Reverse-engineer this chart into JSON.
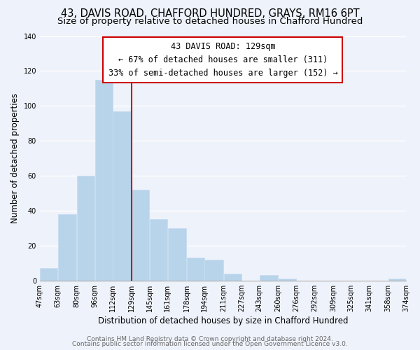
{
  "title": "43, DAVIS ROAD, CHAFFORD HUNDRED, GRAYS, RM16 6PT",
  "subtitle": "Size of property relative to detached houses in Chafford Hundred",
  "xlabel": "Distribution of detached houses by size in Chafford Hundred",
  "ylabel": "Number of detached properties",
  "bar_edges": [
    47,
    63,
    80,
    96,
    112,
    129,
    145,
    161,
    178,
    194,
    211,
    227,
    243,
    260,
    276,
    292,
    309,
    325,
    341,
    358,
    374
  ],
  "bar_heights": [
    7,
    38,
    60,
    115,
    97,
    52,
    35,
    30,
    13,
    12,
    4,
    0,
    3,
    1,
    0,
    0,
    0,
    0,
    0,
    1
  ],
  "bar_color": "#b8d4ea",
  "bar_edge_color": "#c8ddf0",
  "vline_x": 129,
  "vline_color": "#cc0000",
  "annotation_title": "43 DAVIS ROAD: 129sqm",
  "annotation_line1": "← 67% of detached houses are smaller (311)",
  "annotation_line2": "33% of semi-detached houses are larger (152) →",
  "annotation_box_color": "#ffffff",
  "annotation_box_edge_color": "#cc0000",
  "ylim": [
    0,
    140
  ],
  "yticks": [
    0,
    20,
    40,
    60,
    80,
    100,
    120,
    140
  ],
  "tick_labels": [
    "47sqm",
    "63sqm",
    "80sqm",
    "96sqm",
    "112sqm",
    "129sqm",
    "145sqm",
    "161sqm",
    "178sqm",
    "194sqm",
    "211sqm",
    "227sqm",
    "243sqm",
    "260sqm",
    "276sqm",
    "292sqm",
    "309sqm",
    "325sqm",
    "341sqm",
    "358sqm",
    "374sqm"
  ],
  "footer1": "Contains HM Land Registry data © Crown copyright and database right 2024.",
  "footer2": "Contains public sector information licensed under the Open Government Licence v3.0.",
  "background_color": "#eef2fa",
  "grid_color": "#ffffff",
  "title_fontsize": 10.5,
  "subtitle_fontsize": 9.5,
  "axis_label_fontsize": 8.5,
  "tick_fontsize": 7,
  "footer_fontsize": 6.5,
  "ann_fontsize": 8.5
}
